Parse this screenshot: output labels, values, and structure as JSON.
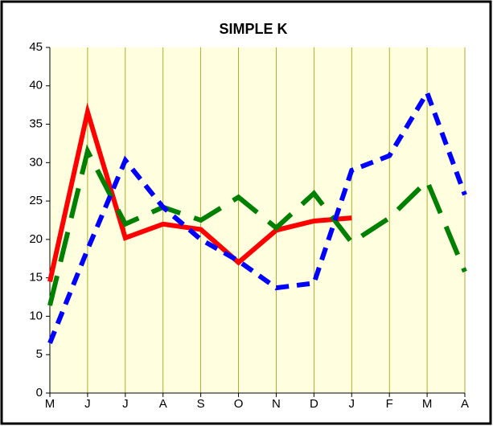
{
  "chart_data": {
    "type": "line",
    "title": "SIMPLE K",
    "categories": [
      "M",
      "J",
      "J",
      "A",
      "S",
      "O",
      "N",
      "D",
      "J",
      "F",
      "M",
      "A"
    ],
    "series": [
      {
        "color": "#ff0000",
        "dash": "solid",
        "values": [
          14.5,
          36.6,
          20.2,
          22,
          21.3,
          17,
          21.2,
          22.4,
          22.8,
          null,
          null,
          null
        ]
      },
      {
        "color": "#008000",
        "dash": "long",
        "values": [
          11.4,
          31.5,
          22,
          24.2,
          22.5,
          25.5,
          21.5,
          26,
          19.6,
          22.8,
          27.6,
          15.8
        ]
      },
      {
        "color": "#0000ff",
        "dash": "short",
        "values": [
          6.5,
          18.7,
          30.3,
          24.2,
          20,
          17.2,
          13.7,
          14.3,
          29,
          30.9,
          39.1,
          25.8
        ]
      }
    ],
    "ylim": [
      0,
      45
    ],
    "yticks": [
      0,
      5,
      10,
      15,
      20,
      25,
      30,
      35,
      40,
      45
    ],
    "grid": true
  }
}
